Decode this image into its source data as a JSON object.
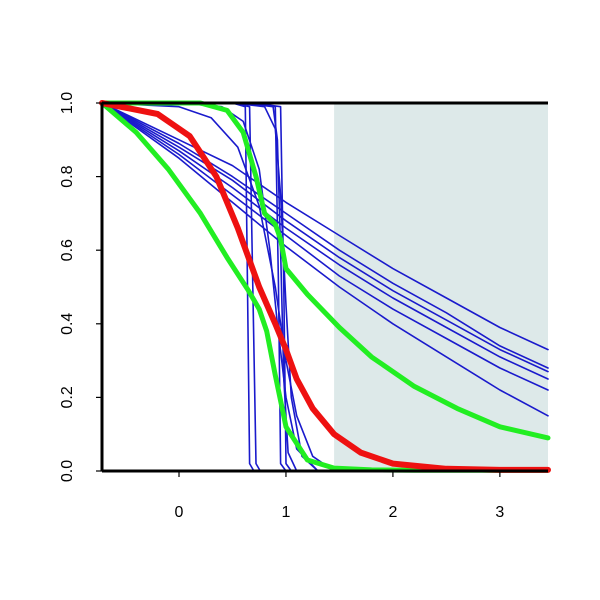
{
  "chart_data": {
    "type": "line",
    "title": "",
    "xlabel": "",
    "ylabel": "",
    "xlim": [
      -0.72,
      3.45
    ],
    "ylim": [
      0,
      1
    ],
    "xticks": [
      0,
      1,
      2,
      3
    ],
    "xtick_labels": [
      "0",
      "1",
      "2",
      "3"
    ],
    "yticks": [
      0,
      0.2,
      0.4,
      0.6,
      0.8,
      1.0
    ],
    "ytick_labels": [
      "0.0",
      "0.2",
      "0.4",
      "0.6",
      "0.8",
      "1.0"
    ],
    "grid": false,
    "legend": "none",
    "shaded_region": {
      "x_from": 1.45,
      "x_to": 3.45,
      "color": "#dde9e9"
    },
    "series": [
      {
        "color": "#1a1acc",
        "width": 1.6,
        "x": [
          -0.72,
          0,
          0.5,
          1,
          1.5,
          2,
          2.5,
          3,
          3.45
        ],
        "y": [
          1.0,
          0.9,
          0.83,
          0.73,
          0.64,
          0.55,
          0.47,
          0.39,
          0.33
        ]
      },
      {
        "color": "#1a1acc",
        "width": 1.6,
        "x": [
          -0.72,
          0,
          0.5,
          1,
          1.5,
          2,
          2.5,
          3,
          3.45
        ],
        "y": [
          1.0,
          0.89,
          0.8,
          0.7,
          0.6,
          0.51,
          0.43,
          0.34,
          0.28
        ]
      },
      {
        "color": "#1a1acc",
        "width": 1.6,
        "x": [
          -0.72,
          0,
          0.5,
          1,
          1.5,
          2,
          2.5,
          3,
          3.45
        ],
        "y": [
          1.0,
          0.88,
          0.79,
          0.68,
          0.58,
          0.49,
          0.41,
          0.33,
          0.27
        ]
      },
      {
        "color": "#1a1acc",
        "width": 1.6,
        "x": [
          -0.72,
          0,
          0.5,
          1,
          1.5,
          2,
          2.5,
          3,
          3.45
        ],
        "y": [
          1.0,
          0.87,
          0.77,
          0.66,
          0.56,
          0.47,
          0.39,
          0.31,
          0.25
        ]
      },
      {
        "color": "#1a1acc",
        "width": 1.6,
        "x": [
          -0.72,
          0,
          0.5,
          1,
          1.5,
          2,
          2.5,
          3,
          3.45
        ],
        "y": [
          1.0,
          0.86,
          0.75,
          0.64,
          0.53,
          0.44,
          0.36,
          0.28,
          0.22
        ]
      },
      {
        "color": "#1a1acc",
        "width": 1.6,
        "x": [
          -0.72,
          0,
          0.5,
          1,
          1.5,
          2,
          2.5,
          3,
          3.45
        ],
        "y": [
          1.0,
          0.85,
          0.73,
          0.61,
          0.5,
          0.4,
          0.31,
          0.22,
          0.15
        ]
      },
      {
        "color": "#1a1acc",
        "width": 1.6,
        "x": [
          -0.72,
          0,
          0.3,
          0.55,
          0.75,
          0.9,
          1.0,
          1.1,
          1.25,
          1.45
        ],
        "y": [
          1.0,
          0.99,
          0.96,
          0.88,
          0.72,
          0.5,
          0.3,
          0.15,
          0.04,
          0.0
        ]
      },
      {
        "color": "#1a1acc",
        "width": 1.6,
        "x": [
          -0.72,
          0,
          0.4,
          0.6,
          0.75,
          0.85,
          0.92,
          1.0,
          1.1,
          1.3
        ],
        "y": [
          1.0,
          1.0,
          0.99,
          0.95,
          0.82,
          0.6,
          0.4,
          0.2,
          0.06,
          0.0
        ]
      },
      {
        "color": "#1a1acc",
        "width": 1.6,
        "x": [
          -0.72,
          0.5,
          0.8,
          0.9,
          0.95,
          1.0,
          1.05,
          1.15,
          1.3
        ],
        "y": [
          1.0,
          1.0,
          0.99,
          0.93,
          0.75,
          0.45,
          0.2,
          0.04,
          0.0
        ]
      },
      {
        "color": "#1a1acc",
        "width": 1.6,
        "x": [
          -0.72,
          0.6,
          0.88,
          0.92,
          0.95,
          0.98,
          1.02,
          1.1
        ],
        "y": [
          1.0,
          1.0,
          0.99,
          0.9,
          0.6,
          0.25,
          0.05,
          0.0
        ]
      },
      {
        "color": "#1a1acc",
        "width": 1.6,
        "x": [
          -0.72,
          0.5,
          0.62,
          0.64,
          0.66,
          0.7
        ],
        "y": [
          1.0,
          1.0,
          0.99,
          0.5,
          0.02,
          0.0
        ]
      },
      {
        "color": "#1a1acc",
        "width": 1.6,
        "x": [
          -0.72,
          0.5,
          0.66,
          0.69,
          0.72,
          0.76
        ],
        "y": [
          1.0,
          1.0,
          0.99,
          0.5,
          0.02,
          0.0
        ]
      },
      {
        "color": "#1a1acc",
        "width": 1.6,
        "x": [
          -0.72,
          0.6,
          0.9,
          0.93,
          0.95,
          1.0
        ],
        "y": [
          1.0,
          1.0,
          0.99,
          0.5,
          0.02,
          0.0
        ]
      },
      {
        "color": "#1a1acc",
        "width": 1.6,
        "x": [
          -0.72,
          0.7,
          0.95,
          0.98,
          1.0,
          1.05
        ],
        "y": [
          1.0,
          1.0,
          0.99,
          0.5,
          0.02,
          0.0
        ]
      },
      {
        "color": "#22ee22",
        "width": 5,
        "x": [
          -0.72,
          -0.4,
          -0.1,
          0.2,
          0.45,
          0.65,
          0.75,
          0.82,
          0.9,
          1.0,
          1.2,
          1.45,
          1.8,
          2.2,
          2.6,
          3.0,
          3.45
        ],
        "y": [
          1.0,
          0.92,
          0.82,
          0.7,
          0.58,
          0.49,
          0.44,
          0.38,
          0.26,
          0.12,
          0.03,
          0.008,
          0.003,
          0.002,
          0.002,
          0.002,
          0.002
        ]
      },
      {
        "color": "#22ee22",
        "width": 5,
        "x": [
          -0.72,
          0.2,
          0.45,
          0.6,
          0.72,
          0.8,
          0.9,
          0.95,
          1.0,
          1.2,
          1.5,
          1.8,
          2.2,
          2.6,
          3.0,
          3.45
        ],
        "y": [
          1.0,
          1.0,
          0.98,
          0.92,
          0.8,
          0.7,
          0.67,
          0.63,
          0.55,
          0.48,
          0.39,
          0.31,
          0.23,
          0.17,
          0.12,
          0.09
        ]
      },
      {
        "color": "#ee1111",
        "width": 6,
        "x": [
          -0.72,
          -0.2,
          0.1,
          0.35,
          0.55,
          0.75,
          0.9,
          1.0,
          1.1,
          1.25,
          1.45,
          1.7,
          2.0,
          2.5,
          3.0,
          3.45
        ],
        "y": [
          1.0,
          0.97,
          0.91,
          0.8,
          0.66,
          0.5,
          0.4,
          0.33,
          0.25,
          0.17,
          0.1,
          0.05,
          0.02,
          0.006,
          0.003,
          0.003
        ]
      }
    ]
  }
}
